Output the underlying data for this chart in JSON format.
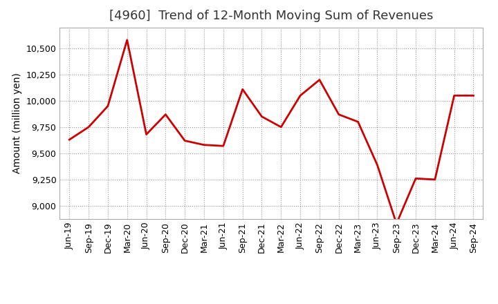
{
  "title": "[4960]  Trend of 12-Month Moving Sum of Revenues",
  "ylabel": "Amount (million yen)",
  "line_color": "#cc0000",
  "background_color": "#ffffff",
  "plot_bg_color": "#ffffff",
  "grid_color": "#999999",
  "x_labels": [
    "Jun-19",
    "Sep-19",
    "Dec-19",
    "Mar-20",
    "Jun-20",
    "Sep-20",
    "Dec-20",
    "Mar-21",
    "Jun-21",
    "Sep-21",
    "Dec-21",
    "Mar-22",
    "Jun-22",
    "Sep-22",
    "Dec-22",
    "Mar-23",
    "Jun-23",
    "Sep-23",
    "Dec-23",
    "Mar-24",
    "Jun-24",
    "Sep-24"
  ],
  "values": [
    9630,
    9750,
    9950,
    10580,
    9680,
    9870,
    9620,
    9580,
    9570,
    10110,
    9850,
    9750,
    10050,
    10200,
    9870,
    9800,
    9390,
    8830,
    9260,
    9250,
    10050,
    10050
  ],
  "ylim": [
    8875,
    10700
  ],
  "yticks": [
    9000,
    9250,
    9500,
    9750,
    10000,
    10250,
    10500
  ],
  "title_fontsize": 13,
  "axis_fontsize": 10,
  "tick_fontsize": 9
}
